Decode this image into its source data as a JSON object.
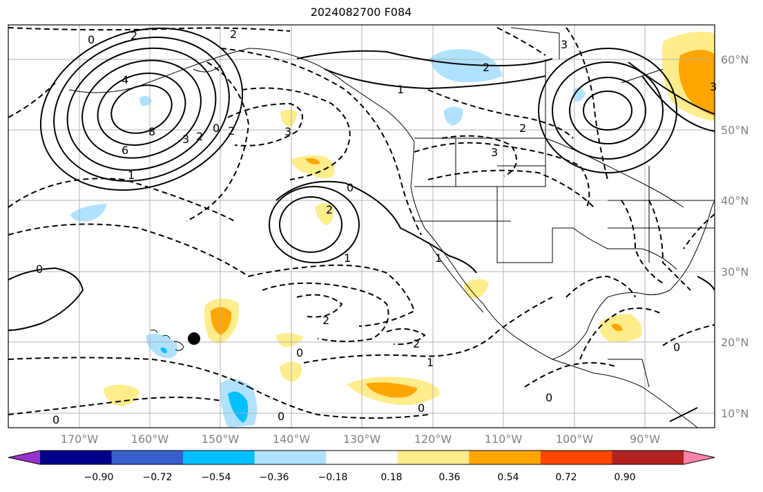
{
  "title": "2024082700 F084",
  "lat_labels": [
    "60°N",
    "50°N",
    "40°N",
    "30°N",
    "20°N",
    "10°N"
  ],
  "lon_labels": [
    "170°W",
    "160°W",
    "150°W",
    "140°W",
    "130°W",
    "120°W",
    "110°W",
    "100°W",
    "90°W"
  ],
  "colorbar": {
    "labels": [
      "−0.90",
      "−0.72",
      "−0.54",
      "−0.36",
      "−0.18",
      "0.18",
      "0.36",
      "0.54",
      "0.72",
      "0.90"
    ],
    "colors": [
      "#9932cc",
      "#00008b",
      "#3a5fcd",
      "#00bfff",
      "#b0e2ff",
      "#ffffff",
      "#ffec8b",
      "#ffa500",
      "#ff4500",
      "#b22222",
      "#ff82ab"
    ]
  },
  "contour_labels": [
    "0",
    "2",
    "2",
    "4",
    "8",
    "6",
    "1",
    "0",
    "3",
    "0",
    "2",
    "1",
    "2",
    "3",
    "3",
    "2",
    "3",
    "0",
    "2",
    "2",
    "1",
    "0",
    "2",
    "2",
    "1",
    "0",
    "0",
    "1",
    "0",
    "0",
    "0",
    "3"
  ],
  "marker": "Hawaii point"
}
